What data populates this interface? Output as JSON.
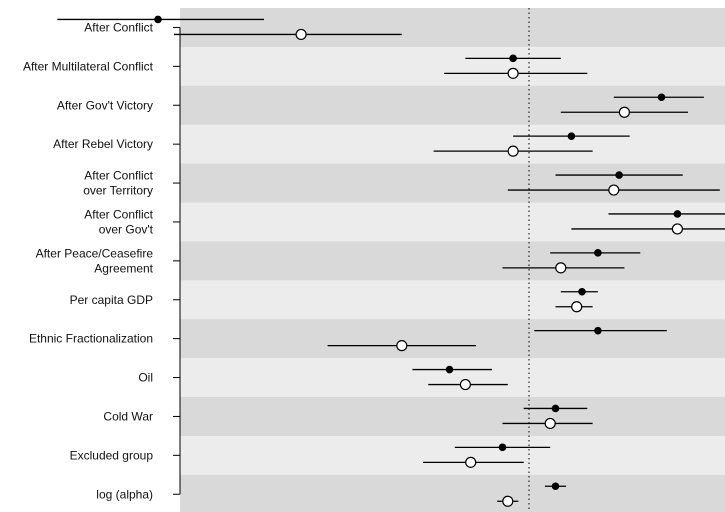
{
  "chart_data": {
    "type": "dot-and-whisker",
    "grid": false,
    "legend": "none",
    "reference_line": {
      "x": 0,
      "style": "dotted"
    },
    "xlim": [
      -1.0,
      0.55
    ],
    "colors": {
      "band_dark": "#d9d9d9",
      "band_light": "#ececec",
      "marker_filled": "#000000",
      "marker_hollow_fill": "#ffffff",
      "line": "#000000"
    },
    "marker_styles": [
      "filled",
      "hollow"
    ],
    "rows": [
      {
        "label_lines": [
          "After Conflict"
        ],
        "estimates": [
          {
            "marker": "filled",
            "value": -0.7,
            "low": -0.89,
            "high": -0.5
          },
          {
            "marker": "hollow",
            "value": -0.43,
            "low": -0.67,
            "high": -0.24
          }
        ]
      },
      {
        "label_lines": [
          "After Multilateral Conflict"
        ],
        "estimates": [
          {
            "marker": "filled",
            "value": -0.03,
            "low": -0.12,
            "high": 0.06
          },
          {
            "marker": "hollow",
            "value": -0.03,
            "low": -0.16,
            "high": 0.11
          }
        ]
      },
      {
        "label_lines": [
          "After Gov't Victory"
        ],
        "estimates": [
          {
            "marker": "filled",
            "value": 0.25,
            "low": 0.16,
            "high": 0.33
          },
          {
            "marker": "hollow",
            "value": 0.18,
            "low": 0.06,
            "high": 0.3
          }
        ]
      },
      {
        "label_lines": [
          "After Rebel Victory"
        ],
        "estimates": [
          {
            "marker": "filled",
            "value": 0.08,
            "low": -0.03,
            "high": 0.19
          },
          {
            "marker": "hollow",
            "value": -0.03,
            "low": -0.18,
            "high": 0.12
          }
        ]
      },
      {
        "label_lines": [
          "After Conflict",
          "over Territory"
        ],
        "estimates": [
          {
            "marker": "filled",
            "value": 0.17,
            "low": 0.05,
            "high": 0.29
          },
          {
            "marker": "hollow",
            "value": 0.16,
            "low": -0.04,
            "high": 0.36
          }
        ]
      },
      {
        "label_lines": [
          "After Conflict",
          "over Gov't"
        ],
        "estimates": [
          {
            "marker": "filled",
            "value": 0.28,
            "low": 0.15,
            "high": 0.41
          },
          {
            "marker": "hollow",
            "value": 0.28,
            "low": 0.08,
            "high": 0.48
          }
        ]
      },
      {
        "label_lines": [
          "After Peace/Ceasefire",
          "Agreement"
        ],
        "estimates": [
          {
            "marker": "filled",
            "value": 0.13,
            "low": 0.04,
            "high": 0.21
          },
          {
            "marker": "hollow",
            "value": 0.06,
            "low": -0.05,
            "high": 0.18
          }
        ]
      },
      {
        "label_lines": [
          "Per capita GDP"
        ],
        "estimates": [
          {
            "marker": "filled",
            "value": 0.1,
            "low": 0.06,
            "high": 0.13
          },
          {
            "marker": "hollow",
            "value": 0.09,
            "low": 0.05,
            "high": 0.12
          }
        ]
      },
      {
        "label_lines": [
          "Ethnic Fractionalization"
        ],
        "estimates": [
          {
            "marker": "filled",
            "value": 0.13,
            "low": 0.01,
            "high": 0.26
          },
          {
            "marker": "hollow",
            "value": -0.24,
            "low": -0.38,
            "high": -0.1
          }
        ]
      },
      {
        "label_lines": [
          "Oil"
        ],
        "estimates": [
          {
            "marker": "filled",
            "value": -0.15,
            "low": -0.22,
            "high": -0.07
          },
          {
            "marker": "hollow",
            "value": -0.12,
            "low": -0.19,
            "high": -0.04
          }
        ]
      },
      {
        "label_lines": [
          "Cold War"
        ],
        "estimates": [
          {
            "marker": "filled",
            "value": 0.05,
            "low": -0.01,
            "high": 0.11
          },
          {
            "marker": "hollow",
            "value": 0.04,
            "low": -0.05,
            "high": 0.12
          }
        ]
      },
      {
        "label_lines": [
          "Excluded group"
        ],
        "estimates": [
          {
            "marker": "filled",
            "value": -0.05,
            "low": -0.14,
            "high": 0.04
          },
          {
            "marker": "hollow",
            "value": -0.11,
            "low": -0.2,
            "high": -0.01
          }
        ]
      },
      {
        "label_lines": [
          "log (alpha)"
        ],
        "estimates": [
          {
            "marker": "filled",
            "value": 0.05,
            "low": 0.03,
            "high": 0.07
          },
          {
            "marker": "hollow",
            "value": -0.04,
            "low": -0.06,
            "high": -0.02
          }
        ]
      }
    ]
  }
}
